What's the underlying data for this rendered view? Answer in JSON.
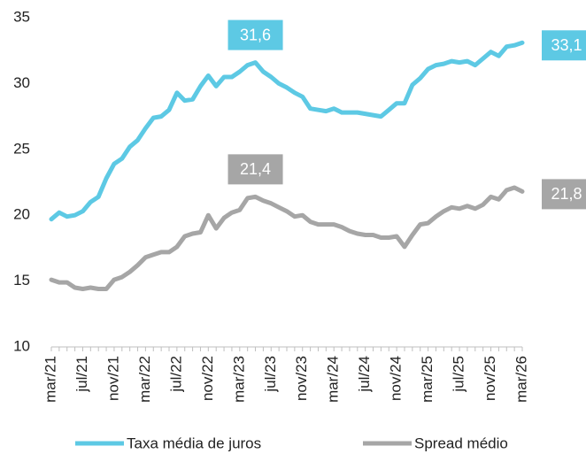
{
  "chart_data": {
    "type": "line",
    "categories": [
      "mar/21",
      null,
      null,
      null,
      "jul/21",
      null,
      null,
      null,
      "nov/21",
      null,
      null,
      null,
      "mar/22",
      null,
      null,
      null,
      "jul/22",
      null,
      null,
      null,
      "nov/22",
      null,
      null,
      null,
      "mar/23",
      null,
      null,
      null,
      "jul/23",
      null,
      null,
      null,
      "nov/23",
      null,
      null,
      null,
      "mar/24",
      null,
      null,
      null,
      "jul/24",
      null,
      null,
      null,
      "nov/24",
      null,
      null,
      null,
      "mar/25",
      null,
      null,
      null,
      "jul/25",
      null,
      null,
      null,
      "nov/25",
      null,
      null,
      null,
      "mar/26"
    ],
    "series": [
      {
        "name": "Taxa média de juros",
        "color": "#5dc9e4",
        "values": [
          19.7,
          20.2,
          19.9,
          20.0,
          20.3,
          21.0,
          21.4,
          22.8,
          23.9,
          24.3,
          25.2,
          25.7,
          26.6,
          27.4,
          27.5,
          28.0,
          29.3,
          28.7,
          28.8,
          29.8,
          30.6,
          29.8,
          30.5,
          30.5,
          30.9,
          31.4,
          31.6,
          30.9,
          30.5,
          30.0,
          29.7,
          29.3,
          29.0,
          28.1,
          28.0,
          27.9,
          28.1,
          27.8,
          27.8,
          27.8,
          27.7,
          27.6,
          27.5,
          28.0,
          28.5,
          28.5,
          29.9,
          30.4,
          31.1,
          31.4,
          31.5,
          31.7,
          31.6,
          31.7,
          31.4,
          31.9,
          32.4,
          32.1,
          32.8,
          32.9,
          33.1
        ],
        "value_labels": [
          null,
          null,
          null,
          null,
          null,
          null,
          null,
          null,
          null,
          null,
          null,
          null,
          null,
          null,
          null,
          null,
          null,
          null,
          null,
          null,
          null,
          null,
          null,
          null,
          null,
          null,
          "31,6",
          null,
          null,
          null,
          null,
          null,
          null,
          null,
          null,
          null,
          null,
          null,
          null,
          null,
          null,
          null,
          null,
          null,
          null,
          null,
          null,
          null,
          null,
          null,
          null,
          null,
          null,
          null,
          null,
          null,
          null,
          null,
          null,
          null,
          "33,1"
        ]
      },
      {
        "name": "Spread médio",
        "color": "#a6a6a6",
        "values": [
          15.1,
          14.9,
          14.9,
          14.5,
          14.4,
          14.5,
          14.4,
          14.4,
          15.1,
          15.3,
          15.7,
          16.2,
          16.8,
          17.0,
          17.2,
          17.2,
          17.6,
          18.4,
          18.6,
          18.7,
          20.0,
          19.0,
          19.8,
          20.2,
          20.4,
          21.3,
          21.4,
          21.1,
          20.9,
          20.6,
          20.3,
          19.9,
          20.0,
          19.5,
          19.3,
          19.3,
          19.3,
          19.1,
          18.8,
          18.6,
          18.5,
          18.5,
          18.3,
          18.3,
          18.4,
          17.6,
          18.5,
          19.3,
          19.4,
          19.9,
          20.3,
          20.6,
          20.5,
          20.7,
          20.5,
          20.8,
          21.4,
          21.2,
          21.9,
          22.1,
          21.8
        ],
        "value_labels": [
          null,
          null,
          null,
          null,
          null,
          null,
          null,
          null,
          null,
          null,
          null,
          null,
          null,
          null,
          null,
          null,
          null,
          null,
          null,
          null,
          null,
          null,
          null,
          null,
          null,
          null,
          "21,4",
          null,
          null,
          null,
          null,
          null,
          null,
          null,
          null,
          null,
          null,
          null,
          null,
          null,
          null,
          null,
          null,
          null,
          null,
          null,
          null,
          null,
          null,
          null,
          null,
          null,
          null,
          null,
          null,
          null,
          null,
          null,
          null,
          null,
          "21,8"
        ]
      }
    ],
    "ylim": [
      10,
      35
    ],
    "yticks": [
      10,
      15,
      20,
      25,
      30,
      35
    ],
    "legend": "bottom"
  }
}
